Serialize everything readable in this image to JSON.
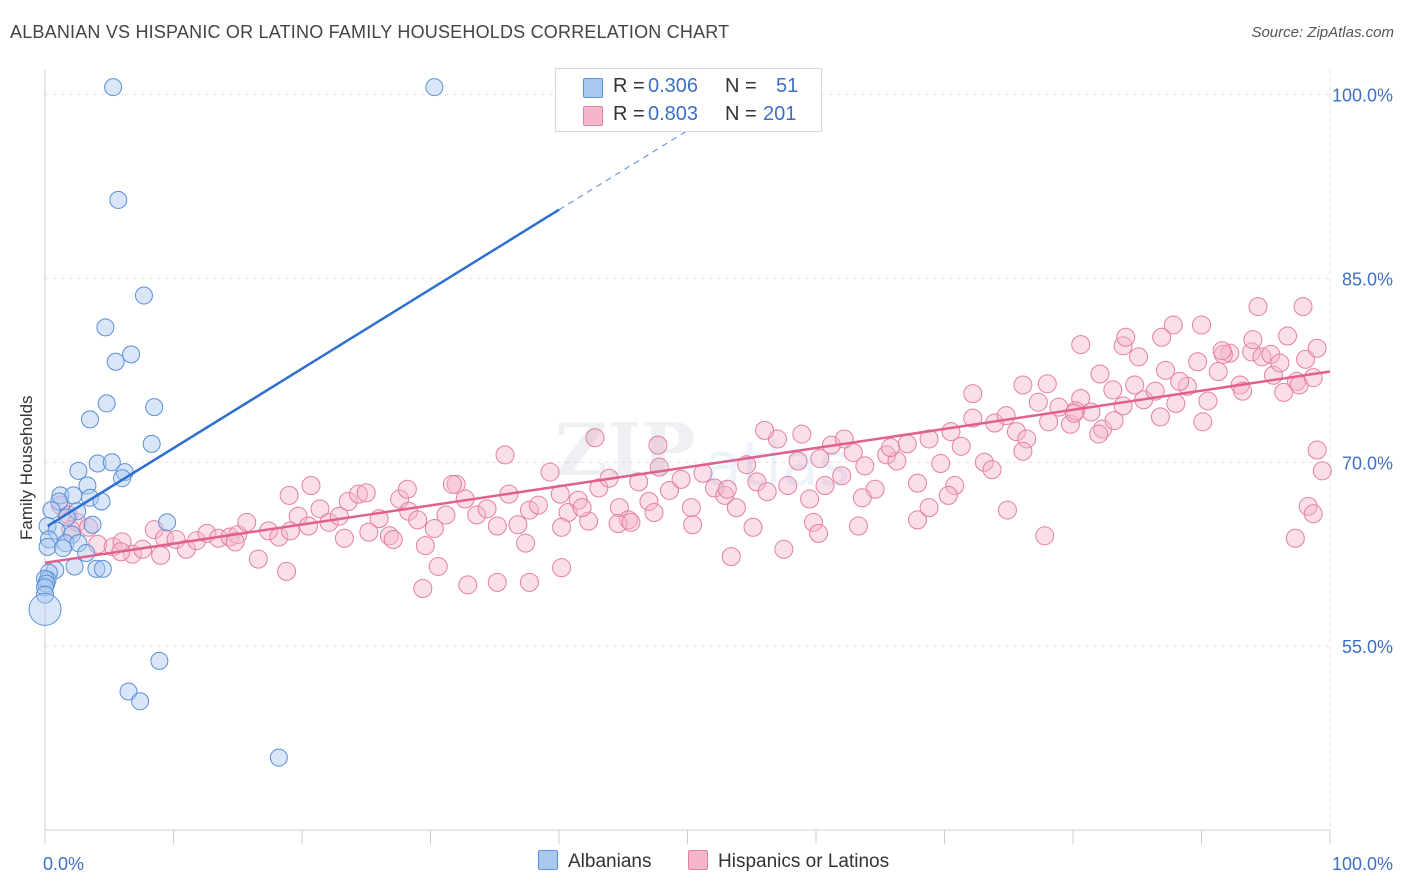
{
  "header": {
    "title": "ALBANIAN VS HISPANIC OR LATINO FAMILY HOUSEHOLDS CORRELATION CHART",
    "source": "Source: ZipAtlas.com"
  },
  "legend_top": {
    "rows": [
      {
        "r_label": "R =",
        "r_value": "0.306",
        "n_label": "N =",
        "n_value": "51"
      },
      {
        "r_label": "R =",
        "r_value": "0.803",
        "n_label": "N =",
        "n_value": "201"
      }
    ]
  },
  "legend_bottom": {
    "albanians": "Albanians",
    "hispanics": "Hispanics or Latinos"
  },
  "colors": {
    "blue_fill": "#a9c8f0",
    "blue_stroke": "#5b8fd6",
    "blue_line": "#2f6fd0",
    "pink_fill": "#f5b5cb",
    "pink_stroke": "#e57fa3",
    "pink_line": "#e0608e",
    "grid": "#e3e3e3",
    "axis_label": "#3d6fc6"
  },
  "chart_data": {
    "type": "scatter",
    "title": "ALBANIAN VS HISPANIC OR LATINO FAMILY HOUSEHOLDS CORRELATION CHART",
    "xlabel": "",
    "ylabel": "Family Households",
    "xlim": [
      0,
      100
    ],
    "ylim": [
      40,
      102
    ],
    "x_tick_labels": [
      "0.0%",
      "100.0%"
    ],
    "y_ticks": [
      55,
      70,
      85,
      100
    ],
    "y_tick_labels": [
      "55.0%",
      "70.0%",
      "85.0%",
      "100.0%"
    ],
    "legend_position": "top-center",
    "series": [
      {
        "name": "Albanians",
        "R": 0.306,
        "N": 51,
        "trend": {
          "x0": 0.2,
          "y0": 64.8,
          "x1": 40,
          "y1": 90.6,
          "dash_to_x": 51,
          "dash_to_y": 97.7
        },
        "points": [
          [
            5.3,
            100.6
          ],
          [
            30.3,
            100.6
          ],
          [
            5.7,
            91.4
          ],
          [
            7.7,
            83.6
          ],
          [
            4.7,
            81.0
          ],
          [
            6.7,
            78.8
          ],
          [
            5.5,
            78.2
          ],
          [
            4.8,
            74.8
          ],
          [
            8.5,
            74.5
          ],
          [
            3.5,
            73.5
          ],
          [
            8.3,
            71.5
          ],
          [
            4.1,
            69.9
          ],
          [
            5.2,
            70.0
          ],
          [
            6.2,
            69.2
          ],
          [
            2.6,
            69.3
          ],
          [
            6.0,
            68.7
          ],
          [
            3.3,
            68.1
          ],
          [
            1.2,
            67.3
          ],
          [
            2.2,
            67.3
          ],
          [
            1.1,
            66.8
          ],
          [
            3.5,
            67.1
          ],
          [
            4.4,
            66.8
          ],
          [
            0.5,
            66.1
          ],
          [
            2.5,
            66.0
          ],
          [
            1.7,
            65.5
          ],
          [
            0.2,
            64.8
          ],
          [
            3.7,
            64.9
          ],
          [
            9.5,
            65.1
          ],
          [
            0.9,
            64.4
          ],
          [
            2.1,
            64.1
          ],
          [
            0.3,
            63.7
          ],
          [
            1.6,
            63.4
          ],
          [
            2.6,
            63.4
          ],
          [
            0.2,
            63.1
          ],
          [
            1.4,
            63.0
          ],
          [
            3.2,
            62.6
          ],
          [
            2.3,
            61.5
          ],
          [
            4.0,
            61.3
          ],
          [
            4.5,
            61.3
          ],
          [
            0.8,
            61.2
          ],
          [
            0.3,
            61.0
          ],
          [
            0.2,
            60.4
          ],
          [
            0.0,
            60.5
          ],
          [
            0.1,
            60.1
          ],
          [
            0.0,
            59.8
          ],
          [
            0.0,
            59.2
          ],
          [
            8.9,
            53.8
          ],
          [
            6.5,
            51.3
          ],
          [
            7.4,
            50.5
          ],
          [
            18.2,
            45.9
          ],
          [
            0.0,
            58.0
          ]
        ]
      },
      {
        "name": "Hispanics or Latinos",
        "R": 0.803,
        "N": 201,
        "trend": {
          "x0": 0,
          "y0": 61.8,
          "x1": 100,
          "y1": 77.4
        },
        "points": [
          [
            1.2,
            66.5
          ],
          [
            1.8,
            65.7
          ],
          [
            2.5,
            65.1
          ],
          [
            3.4,
            64.7
          ],
          [
            4.1,
            63.3
          ],
          [
            5.3,
            63.1
          ],
          [
            6.0,
            63.5
          ],
          [
            6.8,
            62.5
          ],
          [
            7.6,
            62.9
          ],
          [
            8.5,
            64.5
          ],
          [
            9.3,
            63.8
          ],
          [
            10.2,
            63.7
          ],
          [
            11.0,
            62.9
          ],
          [
            11.8,
            63.6
          ],
          [
            12.6,
            64.2
          ],
          [
            13.5,
            63.8
          ],
          [
            14.4,
            63.9
          ],
          [
            15.0,
            64.1
          ],
          [
            15.7,
            65.1
          ],
          [
            16.6,
            62.1
          ],
          [
            17.4,
            64.4
          ],
          [
            18.2,
            63.9
          ],
          [
            19.1,
            64.4
          ],
          [
            19.7,
            65.6
          ],
          [
            20.5,
            64.8
          ],
          [
            21.4,
            66.2
          ],
          [
            22.1,
            65.1
          ],
          [
            22.9,
            65.6
          ],
          [
            23.6,
            66.8
          ],
          [
            24.4,
            67.4
          ],
          [
            25.2,
            64.3
          ],
          [
            26.0,
            65.4
          ],
          [
            26.8,
            64.0
          ],
          [
            27.6,
            67.0
          ],
          [
            28.3,
            66.0
          ],
          [
            29.0,
            65.3
          ],
          [
            29.6,
            63.2
          ],
          [
            30.3,
            64.6
          ],
          [
            31.2,
            65.7
          ],
          [
            32.0,
            68.2
          ],
          [
            32.7,
            67.0
          ],
          [
            33.6,
            65.7
          ],
          [
            34.4,
            66.2
          ],
          [
            35.2,
            64.8
          ],
          [
            36.1,
            67.4
          ],
          [
            36.8,
            64.9
          ],
          [
            37.7,
            66.1
          ],
          [
            38.4,
            66.5
          ],
          [
            39.3,
            69.2
          ],
          [
            40.1,
            67.4
          ],
          [
            40.7,
            65.9
          ],
          [
            41.5,
            66.9
          ],
          [
            42.3,
            65.2
          ],
          [
            43.1,
            67.9
          ],
          [
            43.9,
            68.7
          ],
          [
            44.7,
            66.3
          ],
          [
            45.4,
            65.3
          ],
          [
            46.2,
            68.4
          ],
          [
            47.0,
            66.8
          ],
          [
            47.8,
            69.6
          ],
          [
            48.6,
            67.7
          ],
          [
            49.5,
            68.6
          ],
          [
            50.3,
            66.3
          ],
          [
            51.2,
            69.1
          ],
          [
            52.1,
            67.9
          ],
          [
            52.9,
            67.3
          ],
          [
            53.8,
            66.3
          ],
          [
            54.6,
            69.8
          ],
          [
            55.4,
            68.4
          ],
          [
            56.2,
            67.6
          ],
          [
            57.0,
            71.9
          ],
          [
            57.8,
            68.1
          ],
          [
            58.6,
            70.1
          ],
          [
            59.5,
            67.0
          ],
          [
            60.3,
            70.3
          ],
          [
            61.2,
            71.4
          ],
          [
            62.0,
            68.9
          ],
          [
            62.9,
            70.8
          ],
          [
            63.8,
            69.7
          ],
          [
            64.6,
            67.8
          ],
          [
            65.5,
            70.6
          ],
          [
            66.3,
            70.1
          ],
          [
            67.1,
            71.5
          ],
          [
            67.9,
            68.3
          ],
          [
            68.8,
            71.9
          ],
          [
            69.7,
            69.9
          ],
          [
            70.5,
            72.5
          ],
          [
            71.3,
            71.3
          ],
          [
            72.2,
            73.6
          ],
          [
            73.1,
            70.0
          ],
          [
            73.9,
            73.2
          ],
          [
            74.8,
            73.8
          ],
          [
            75.6,
            72.5
          ],
          [
            76.4,
            71.9
          ],
          [
            77.3,
            74.9
          ],
          [
            78.1,
            73.3
          ],
          [
            78.9,
            74.5
          ],
          [
            79.8,
            73.1
          ],
          [
            80.6,
            75.2
          ],
          [
            81.4,
            74.1
          ],
          [
            82.3,
            72.7
          ],
          [
            83.1,
            75.9
          ],
          [
            83.9,
            74.6
          ],
          [
            84.8,
            76.3
          ],
          [
            85.5,
            75.1
          ],
          [
            86.4,
            75.8
          ],
          [
            87.2,
            77.5
          ],
          [
            88.0,
            74.8
          ],
          [
            88.9,
            76.2
          ],
          [
            89.7,
            78.2
          ],
          [
            90.5,
            75.0
          ],
          [
            91.3,
            77.4
          ],
          [
            92.2,
            78.9
          ],
          [
            93.0,
            76.3
          ],
          [
            93.9,
            79.0
          ],
          [
            94.7,
            78.6
          ],
          [
            95.6,
            77.1
          ],
          [
            96.4,
            75.7
          ],
          [
            97.4,
            76.6
          ],
          [
            98.1,
            78.4
          ],
          [
            99.0,
            79.3
          ],
          [
            2.0,
            64.5
          ],
          [
            5.9,
            62.7
          ],
          [
            9.0,
            62.4
          ],
          [
            14.8,
            63.5
          ],
          [
            18.8,
            61.1
          ],
          [
            23.3,
            63.8
          ],
          [
            27.1,
            63.7
          ],
          [
            29.4,
            59.7
          ],
          [
            30.6,
            61.5
          ],
          [
            32.9,
            60.0
          ],
          [
            37.4,
            63.4
          ],
          [
            40.2,
            64.7
          ],
          [
            41.8,
            66.3
          ],
          [
            44.6,
            65.0
          ],
          [
            47.4,
            65.9
          ],
          [
            50.4,
            64.9
          ],
          [
            53.4,
            62.3
          ],
          [
            55.1,
            64.7
          ],
          [
            57.5,
            62.9
          ],
          [
            59.8,
            65.1
          ],
          [
            60.2,
            64.2
          ],
          [
            63.3,
            64.8
          ],
          [
            67.9,
            65.3
          ],
          [
            68.8,
            66.3
          ],
          [
            70.8,
            68.1
          ],
          [
            73.7,
            69.4
          ],
          [
            76.1,
            70.9
          ],
          [
            77.8,
            64.0
          ],
          [
            80.2,
            74.2
          ],
          [
            82.0,
            72.3
          ],
          [
            83.2,
            73.4
          ],
          [
            85.1,
            78.6
          ],
          [
            86.8,
            73.7
          ],
          [
            88.3,
            76.6
          ],
          [
            90.1,
            73.3
          ],
          [
            91.7,
            78.8
          ],
          [
            93.2,
            75.8
          ],
          [
            94.0,
            80.0
          ],
          [
            95.4,
            78.8
          ],
          [
            96.7,
            80.3
          ],
          [
            97.6,
            76.3
          ],
          [
            98.7,
            76.9
          ],
          [
            99.4,
            69.3
          ],
          [
            96.1,
            78.1
          ],
          [
            98.3,
            66.4
          ],
          [
            97.3,
            63.8
          ],
          [
            99.0,
            71.0
          ],
          [
            98.7,
            65.8
          ],
          [
            35.2,
            60.2
          ],
          [
            37.7,
            60.2
          ],
          [
            40.2,
            61.4
          ],
          [
            45.6,
            65.1
          ],
          [
            53.1,
            67.8
          ],
          [
            60.7,
            68.1
          ],
          [
            63.6,
            67.1
          ],
          [
            70.3,
            67.3
          ],
          [
            74.9,
            66.1
          ],
          [
            19.0,
            67.3
          ],
          [
            20.7,
            68.1
          ],
          [
            25.0,
            67.5
          ],
          [
            28.2,
            67.8
          ],
          [
            31.7,
            68.2
          ],
          [
            35.8,
            70.6
          ],
          [
            42.8,
            72.0
          ],
          [
            47.7,
            71.4
          ],
          [
            56.0,
            72.6
          ],
          [
            58.9,
            72.3
          ],
          [
            62.2,
            71.9
          ],
          [
            65.8,
            71.2
          ],
          [
            72.2,
            75.6
          ],
          [
            76.1,
            76.3
          ],
          [
            78.0,
            76.4
          ],
          [
            80.1,
            74.0
          ],
          [
            82.1,
            77.2
          ],
          [
            83.9,
            79.5
          ],
          [
            87.8,
            81.2
          ],
          [
            91.6,
            79.1
          ],
          [
            94.4,
            82.7
          ],
          [
            97.9,
            82.7
          ],
          [
            80.6,
            79.6
          ],
          [
            84.1,
            80.2
          ],
          [
            90.0,
            81.2
          ],
          [
            86.9,
            80.2
          ]
        ]
      }
    ]
  }
}
